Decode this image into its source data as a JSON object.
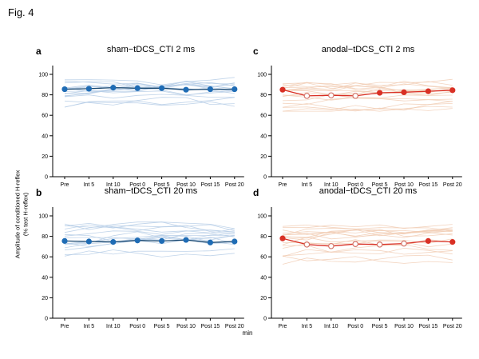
{
  "figure": {
    "label": "Fig. 4",
    "y_axis_title_line1": "Amplitude of conditioned H-reflex",
    "y_axis_title_line2": "(% test H-reflex)",
    "x_axis_unit": "min"
  },
  "colors": {
    "axis": "#000000",
    "blue_mean_line": "#17466f",
    "blue_marker": "#1f6cb5",
    "blue_individual": "#b5cde6",
    "red_mean_line": "#d93025",
    "red_marker": "#d93025",
    "red_open_marker_stroke": "#d4766a",
    "red_individual": "#f1cdb4"
  },
  "chart_data": [
    {
      "id": "a",
      "panel_label": "a",
      "title": "sham−tDCS_CTI 2 ms",
      "type": "line",
      "position": "top-left",
      "side": "left",
      "color_scheme": "blue",
      "categories": [
        "Pre",
        "Int 5",
        "Int 10",
        "Post 0",
        "Post 5",
        "Post 10",
        "Post 15",
        "Post 20"
      ],
      "ylim": [
        0,
        100
      ],
      "yticks": [
        0,
        20,
        40,
        60,
        80,
        100
      ],
      "mean_series": {
        "values": [
          85.5,
          86,
          87,
          86.5,
          86.5,
          85,
          85.5,
          85.5
        ],
        "open_markers": [
          false,
          false,
          false,
          false,
          false,
          false,
          false,
          false
        ]
      },
      "individual_lines": {
        "count": 16,
        "approx_range": [
          68,
          97
        ],
        "seed": 11
      }
    },
    {
      "id": "c",
      "panel_label": "c",
      "title": "anodal−tDCS_CTI 2 ms",
      "type": "line",
      "position": "top-right",
      "side": "right",
      "color_scheme": "red",
      "categories": [
        "Pre",
        "Int 5",
        "Int 10",
        "Post 0",
        "Post 5",
        "Post 10",
        "Post 15",
        "Post 20"
      ],
      "ylim": [
        0,
        100
      ],
      "yticks": [
        0,
        20,
        40,
        60,
        80,
        100
      ],
      "mean_series": {
        "values": [
          85,
          79,
          79.5,
          79,
          82,
          82.5,
          83.5,
          84.5
        ],
        "open_markers": [
          false,
          true,
          true,
          true,
          false,
          false,
          false,
          false
        ]
      },
      "individual_lines": {
        "count": 18,
        "approx_range": [
          64,
          97
        ],
        "seed": 22
      }
    },
    {
      "id": "b",
      "panel_label": "b",
      "title": "sham−tDCS_CTI 20 ms",
      "type": "line",
      "position": "bottom-left",
      "side": "left",
      "color_scheme": "blue",
      "categories": [
        "Pre",
        "Int 5",
        "Int 10",
        "Post 0",
        "Post 5",
        "Post 10",
        "Post 15",
        "Post 20"
      ],
      "ylim": [
        0,
        100
      ],
      "yticks": [
        0,
        20,
        40,
        60,
        80,
        100
      ],
      "mean_series": {
        "values": [
          75.5,
          75,
          74.5,
          76,
          75.5,
          76.5,
          74,
          75
        ],
        "open_markers": [
          false,
          false,
          false,
          false,
          false,
          false,
          false,
          false
        ]
      },
      "individual_lines": {
        "count": 16,
        "approx_range": [
          59,
          94
        ],
        "seed": 33
      }
    },
    {
      "id": "d",
      "panel_label": "d",
      "title": "anodal−tDCS_CTI 20 ms",
      "type": "line",
      "position": "bottom-right",
      "side": "right",
      "color_scheme": "red",
      "categories": [
        "Pre",
        "Int 5",
        "Int 10",
        "Post 0",
        "Post 5",
        "Post 10",
        "Post 15",
        "Post 20"
      ],
      "ylim": [
        0,
        100
      ],
      "yticks": [
        0,
        20,
        40,
        60,
        80,
        100
      ],
      "mean_series": {
        "values": [
          78,
          72,
          70.5,
          72.5,
          72,
          73,
          75.5,
          74.5
        ],
        "open_markers": [
          false,
          true,
          true,
          true,
          true,
          true,
          false,
          false
        ]
      },
      "individual_lines": {
        "count": 18,
        "approx_range": [
          52,
          94
        ],
        "seed": 44
      }
    }
  ]
}
